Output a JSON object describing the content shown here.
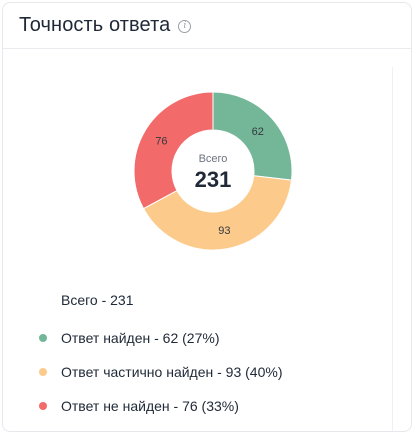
{
  "widget": {
    "title": "Точность ответа",
    "info_icon": "info-icon",
    "total_text": "Всего - 231"
  },
  "chart_data": {
    "type": "pie",
    "donut": true,
    "center_label": "Всего",
    "center_value": "231",
    "total": 231,
    "categories": [
      "Ответ найден",
      "Ответ частично найден",
      "Ответ не найден"
    ],
    "values": [
      62,
      93,
      76
    ],
    "percent_labels": [
      "27%",
      "40%",
      "33%"
    ],
    "colors": [
      "#74b798",
      "#fccb8c",
      "#f26a6a"
    ],
    "legend": [
      "Ответ найден - 62 (27%)",
      "Ответ частично найден - 93 (40%)",
      "Ответ не найден - 76 (33%)"
    ],
    "legend_placement": "bottom-left"
  }
}
